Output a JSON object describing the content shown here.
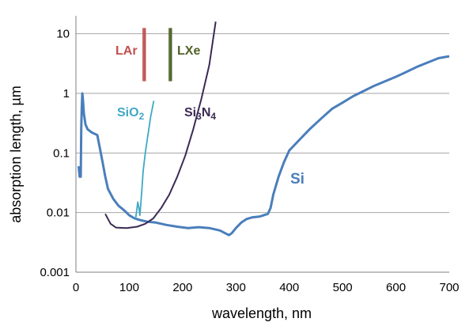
{
  "chart_data": {
    "type": "line",
    "title": "",
    "xlabel": "wavelength, nm",
    "ylabel": "absorption length, µm",
    "xlim": [
      0,
      700
    ],
    "ylim": [
      0.001,
      20
    ],
    "yscale": "log",
    "grid": "horizontal",
    "x_ticks": [
      "0",
      "100",
      "200",
      "300",
      "400",
      "500",
      "600",
      "700"
    ],
    "y_ticks": [
      "0.001",
      "0.01",
      "0.1",
      "1",
      "10"
    ],
    "colors": {
      "Si": "#4a7ebb",
      "SiO2": "#3fa8c4",
      "Si3N4": "#3b2a55",
      "LAr": "#c0504d",
      "LXe": "#4f6228"
    },
    "series": [
      {
        "name": "Si",
        "label": "Si",
        "points": [
          [
            5,
            0.06
          ],
          [
            7,
            0.04
          ],
          [
            9,
            0.04
          ],
          [
            10,
            0.25
          ],
          [
            11,
            0.6
          ],
          [
            12,
            1.0
          ],
          [
            13,
            0.8
          ],
          [
            15,
            0.45
          ],
          [
            18,
            0.3
          ],
          [
            22,
            0.25
          ],
          [
            30,
            0.22
          ],
          [
            40,
            0.2
          ],
          [
            45,
            0.12
          ],
          [
            50,
            0.07
          ],
          [
            55,
            0.04
          ],
          [
            60,
            0.025
          ],
          [
            70,
            0.017
          ],
          [
            80,
            0.013
          ],
          [
            90,
            0.011
          ],
          [
            100,
            0.009
          ],
          [
            110,
            0.008
          ],
          [
            120,
            0.0075
          ],
          [
            135,
            0.007
          ],
          [
            150,
            0.0068
          ],
          [
            170,
            0.0062
          ],
          [
            190,
            0.0058
          ],
          [
            210,
            0.0055
          ],
          [
            230,
            0.0057
          ],
          [
            250,
            0.0055
          ],
          [
            270,
            0.005
          ],
          [
            280,
            0.0045
          ],
          [
            287,
            0.0042
          ],
          [
            292,
            0.0045
          ],
          [
            300,
            0.0055
          ],
          [
            310,
            0.0068
          ],
          [
            320,
            0.0078
          ],
          [
            330,
            0.0083
          ],
          [
            345,
            0.0086
          ],
          [
            360,
            0.0095
          ],
          [
            365,
            0.012
          ],
          [
            370,
            0.02
          ],
          [
            380,
            0.04
          ],
          [
            390,
            0.07
          ],
          [
            400,
            0.11
          ],
          [
            420,
            0.17
          ],
          [
            440,
            0.26
          ],
          [
            460,
            0.38
          ],
          [
            480,
            0.55
          ],
          [
            500,
            0.7
          ],
          [
            520,
            0.9
          ],
          [
            540,
            1.1
          ],
          [
            560,
            1.35
          ],
          [
            580,
            1.6
          ],
          [
            600,
            1.9
          ],
          [
            620,
            2.3
          ],
          [
            640,
            2.8
          ],
          [
            660,
            3.3
          ],
          [
            680,
            3.9
          ],
          [
            700,
            4.2
          ]
        ]
      },
      {
        "name": "SiO2",
        "label": "SiO",
        "label_sub": "2",
        "points": [
          [
            112,
            0.008
          ],
          [
            114,
            0.011
          ],
          [
            116,
            0.015
          ],
          [
            118,
            0.012
          ],
          [
            120,
            0.009
          ],
          [
            123,
            0.02
          ],
          [
            126,
            0.05
          ],
          [
            130,
            0.1
          ],
          [
            135,
            0.2
          ],
          [
            140,
            0.4
          ],
          [
            146,
            0.75
          ]
        ]
      },
      {
        "name": "Si3N4",
        "label": "Si",
        "label_sub1": "3",
        "label_mid": "N",
        "label_sub2": "4",
        "points": [
          [
            55,
            0.0095
          ],
          [
            65,
            0.0065
          ],
          [
            75,
            0.0056
          ],
          [
            95,
            0.0055
          ],
          [
            115,
            0.0058
          ],
          [
            130,
            0.0065
          ],
          [
            145,
            0.008
          ],
          [
            160,
            0.012
          ],
          [
            175,
            0.02
          ],
          [
            190,
            0.04
          ],
          [
            205,
            0.09
          ],
          [
            220,
            0.25
          ],
          [
            235,
            0.8
          ],
          [
            250,
            3.0
          ],
          [
            262,
            16
          ]
        ]
      }
    ],
    "bands": [
      {
        "name": "LAr",
        "label": "LAr",
        "x": [
          126,
          128,
          130
        ]
      },
      {
        "name": "LXe",
        "label": "LXe",
        "x": [
          175,
          177,
          179
        ]
      }
    ]
  }
}
